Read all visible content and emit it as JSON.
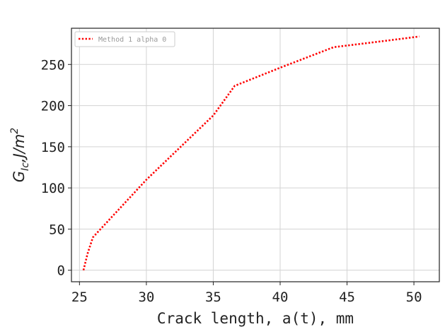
{
  "chart_data": {
    "type": "line",
    "title": "",
    "xlabel": "Crack length, a(t), mm",
    "ylabel": {
      "base": "G",
      "subscript": "Ic",
      "separator": ",",
      "unit": "J/m",
      "superscript": "2"
    },
    "xlim": [
      24.4,
      51.9
    ],
    "ylim": [
      -14,
      294
    ],
    "xticks": [
      25,
      30,
      35,
      40,
      45,
      50
    ],
    "yticks": [
      0,
      50,
      100,
      150,
      200,
      250
    ],
    "grid": true,
    "legend_position": "top-left",
    "series": [
      {
        "name": "Method 1 alpha 0",
        "color": "#ff0000",
        "style": "dotted",
        "x": [
          25.3,
          25.6,
          26.0,
          30.0,
          35.0,
          36.6,
          40.0,
          44.0,
          45.0,
          48.0,
          50.4
        ],
        "y": [
          0,
          20,
          40,
          110,
          188,
          224,
          246,
          271,
          273,
          279,
          284
        ]
      }
    ]
  }
}
